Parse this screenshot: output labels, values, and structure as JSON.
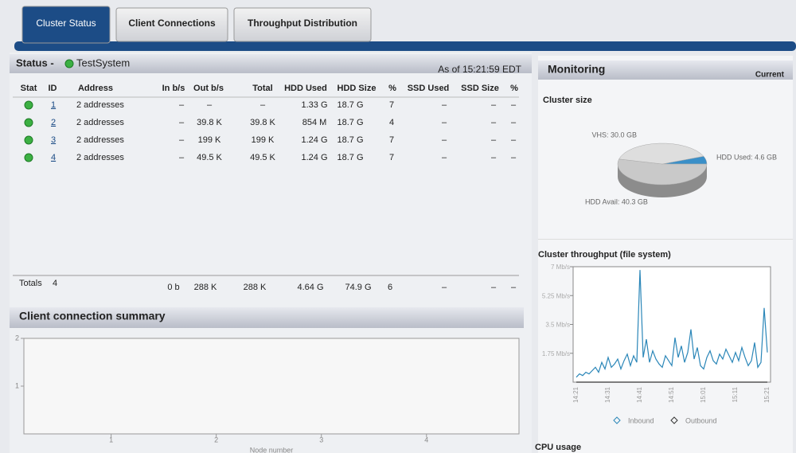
{
  "tabs": [
    "Cluster Status",
    "Client Connections",
    "Throughput Distribution"
  ],
  "status": {
    "title": "Status -",
    "system": "TestSystem",
    "as_of": "As of 15:21:59 EDT",
    "columns": [
      "Stat",
      "ID",
      "Address",
      "In b/s",
      "Out b/s",
      "Total",
      "HDD Used",
      "HDD Size",
      "%",
      "SSD Used",
      "SSD Size",
      "%"
    ],
    "rows": [
      [
        "1",
        "2 addresses",
        "–",
        "–",
        "–",
        "1.33 G",
        "18.7 G",
        "7",
        "–",
        "–",
        "–"
      ],
      [
        "2",
        "2 addresses",
        "–",
        "39.8 K",
        "39.8 K",
        "854 M",
        "18.7 G",
        "4",
        "–",
        "–",
        "–"
      ],
      [
        "3",
        "2 addresses",
        "–",
        "199 K",
        "199 K",
        "1.24 G",
        "18.7 G",
        "7",
        "–",
        "–",
        "–"
      ],
      [
        "4",
        "2 addresses",
        "–",
        "49.5 K",
        "49.5 K",
        "1.24 G",
        "18.7 G",
        "7",
        "–",
        "–",
        "–"
      ]
    ],
    "totals_label": "Totals",
    "totals_count": "4",
    "totals": [
      "0 b",
      "288 K",
      "288 K",
      "4.64 G",
      "74.9 G",
      "6",
      "–",
      "–",
      "–"
    ]
  },
  "summary": {
    "title": "Client connection summary",
    "chart_data": {
      "type": "bar",
      "x_label": "Node number",
      "xlim": [
        0.17,
        4.88
      ],
      "xticks": [
        1,
        2,
        3,
        4
      ],
      "ylim": [
        0,
        2
      ],
      "yticks": [
        1,
        2
      ]
    }
  },
  "monitoring": {
    "title": "Monitoring",
    "mode": "Current",
    "size": {
      "title": "Cluster size",
      "chart_data": {
        "type": "pie",
        "categories": [
          "HDD Used",
          "HDD Avail",
          "VHS"
        ],
        "values": [
          4.6,
          40.3,
          30.0
        ],
        "value_labels": [
          "HDD Used: 4.6 GB",
          "HDD Avail: 40.3 GB",
          "VHS: 30.0 GB"
        ],
        "colors": [
          "#3a8fc8",
          "#c9c9c9",
          "#dedede"
        ]
      }
    },
    "throughput": {
      "title": "Cluster throughput (file system)",
      "chart_data": {
        "type": "line",
        "categories": [
          "14:21",
          null,
          null,
          null,
          null,
          null,
          null,
          null,
          null,
          null,
          "14:31",
          null,
          null,
          null,
          null,
          null,
          null,
          null,
          null,
          null,
          "14:41",
          null,
          null,
          null,
          null,
          null,
          null,
          null,
          null,
          null,
          "14:51",
          null,
          null,
          null,
          null,
          null,
          null,
          null,
          null,
          null,
          "15:01",
          null,
          null,
          null,
          null,
          null,
          null,
          null,
          null,
          null,
          "15:11",
          null,
          null,
          null,
          null,
          null,
          null,
          null,
          null,
          null,
          "15:21"
        ],
        "ylim": [
          0,
          7
        ],
        "yticks": [
          {
            "value": 1.75,
            "label": "1.75 Mb/s"
          },
          {
            "value": 3.5,
            "label": "3.5 Mb/s"
          },
          {
            "value": 5.25,
            "label": "5.25 Mb/s"
          },
          {
            "value": 7,
            "label": "7 Mb/s"
          }
        ],
        "series": [
          {
            "name": "Inbound",
            "color": "#2a86b8",
            "values": [
              0.3,
              0.5,
              0.4,
              0.6,
              0.5,
              0.7,
              0.9,
              0.6,
              1.2,
              0.8,
              1.5,
              0.9,
              1.1,
              1.4,
              0.8,
              1.3,
              1.7,
              1.0,
              1.6,
              1.2,
              6.8,
              1.5,
              2.6,
              1.2,
              1.9,
              1.4,
              1.1,
              0.9,
              1.6,
              1.3,
              1.0,
              2.7,
              1.5,
              2.2,
              1.2,
              1.8,
              3.2,
              1.4,
              2.1,
              1.0,
              0.8,
              1.5,
              1.9,
              1.3,
              1.1,
              1.7,
              1.4,
              2.0,
              1.6,
              1.2,
              1.8,
              1.3,
              2.1,
              1.5,
              1.0,
              1.3,
              2.4,
              0.9,
              1.2,
              4.5,
              1.8
            ]
          },
          {
            "name": "Outbound",
            "color": "#333333",
            "values": [
              0,
              0,
              0,
              0,
              0,
              0,
              0,
              0,
              0,
              0,
              0,
              0,
              0,
              0,
              0,
              0,
              0,
              0,
              0,
              0,
              0,
              0,
              0,
              0,
              0,
              0,
              0,
              0,
              0,
              0,
              0,
              0,
              0,
              0,
              0,
              0,
              0,
              0,
              0,
              0,
              0,
              0,
              0,
              0,
              0,
              0,
              0,
              0,
              0,
              0,
              0,
              0,
              0,
              0,
              0,
              0,
              0,
              0,
              0,
              0,
              0
            ]
          }
        ]
      }
    },
    "cpu_title": "CPU usage"
  }
}
